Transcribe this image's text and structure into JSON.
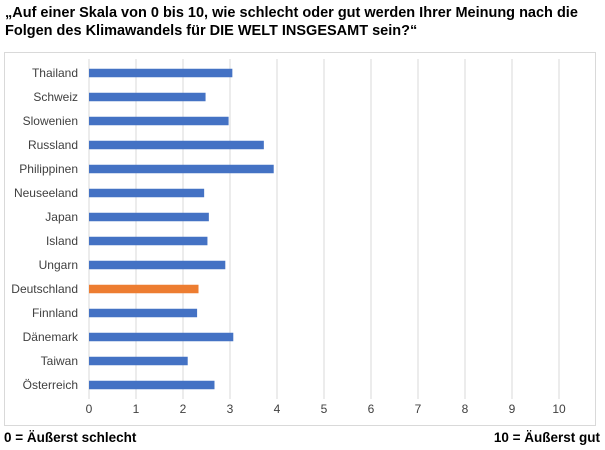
{
  "title": "„Auf einer Skala von 0 bis 10, wie schlecht oder gut werden Ihrer Meinung nach die Folgen des Klimawandels für DIE WELT INSGESAMT sein?“",
  "footer": {
    "left": "0 = Äußerst schlecht",
    "right": "10 = Äußerst gut"
  },
  "colors": {
    "bar": "#4472c4",
    "highlight": "#ed7d31",
    "grid": "#d9d9d9",
    "text": "#404040"
  },
  "chart_data": {
    "type": "bar",
    "orientation": "horizontal",
    "title": "„Auf einer Skala von 0 bis 10, wie schlecht oder gut werden Ihrer Meinung nach die Folgen des Klimawandels für DIE WELT INSGESAMT sein?“",
    "categories": [
      "Thailand",
      "Schweiz",
      "Slowenien",
      "Russland",
      "Philippinen",
      "Neuseeland",
      "Japan",
      "Island",
      "Ungarn",
      "Deutschland",
      "Finnland",
      "Dänemark",
      "Taiwan",
      "Österreich"
    ],
    "values": [
      3.05,
      2.48,
      2.97,
      3.72,
      3.93,
      2.45,
      2.55,
      2.52,
      2.9,
      2.33,
      2.3,
      3.07,
      2.1,
      2.67
    ],
    "highlight": "Deutschland",
    "xlim": [
      0,
      10
    ],
    "xticks": [
      0,
      1,
      2,
      3,
      4,
      5,
      6,
      7,
      8,
      9,
      10
    ],
    "xlabel": "",
    "ylabel": "",
    "grid": "vertical",
    "legend": "none"
  }
}
